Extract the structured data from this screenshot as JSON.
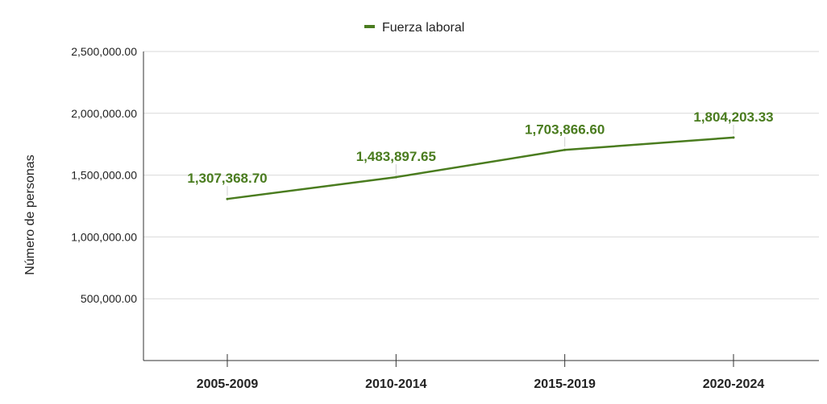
{
  "chart_data": {
    "type": "line",
    "categories": [
      "2005-2009",
      "2010-2014",
      "2015-2019",
      "2020-2024"
    ],
    "series": [
      {
        "name": "Fuerza laboral",
        "values": [
          1307368.7,
          1483897.65,
          1703866.6,
          1804203.33
        ],
        "data_labels": [
          "1,307,368.70",
          "1,483,897.65",
          "1,703,866.60",
          "1,804,203.33"
        ],
        "color": "#4a7c1f"
      }
    ],
    "ylabel": "Número de personas",
    "xlabel": "",
    "ylim": [
      0,
      2500000
    ],
    "y_ticks": [
      {
        "value": 500000,
        "label": "500,000.00"
      },
      {
        "value": 1000000,
        "label": "1,000,000.00"
      },
      {
        "value": 1500000,
        "label": "1,500,000.00"
      },
      {
        "value": 2000000,
        "label": "2,000,000.00"
      },
      {
        "value": 2500000,
        "label": "2,500,000.00"
      }
    ],
    "grid": true,
    "legend_position": "top-center",
    "colors": {
      "line": "#4a7c1f",
      "grid": "#d9d9d9",
      "axis": "#333333"
    }
  }
}
